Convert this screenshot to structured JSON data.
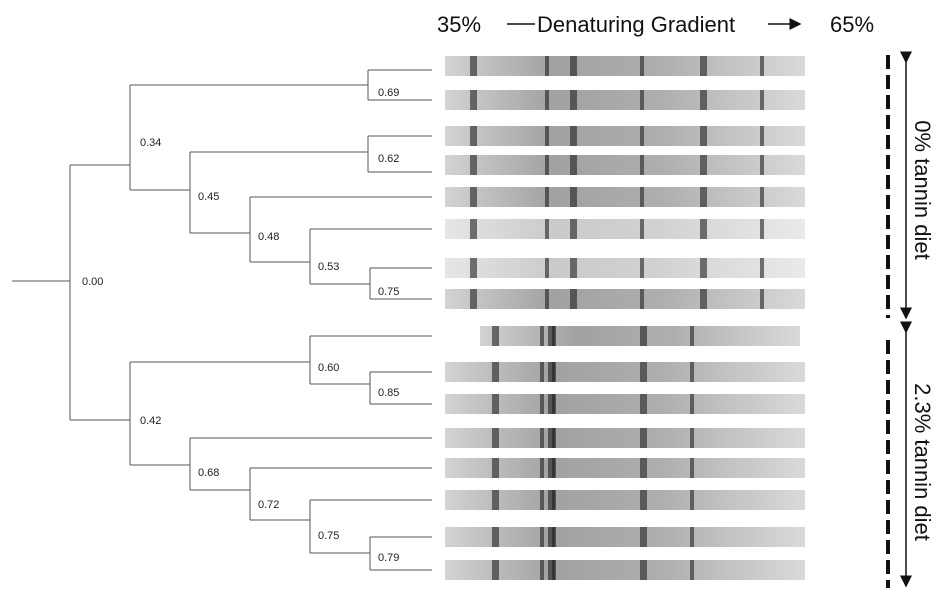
{
  "header": {
    "left": "35%",
    "title": "Denaturing Gradient",
    "right": "65%"
  },
  "nodes": [
    {
      "label": "0.00"
    },
    {
      "label": "0.34"
    },
    {
      "label": "0.69"
    },
    {
      "label": "0.45"
    },
    {
      "label": "0.62"
    },
    {
      "label": "0.48"
    },
    {
      "label": "0.53"
    },
    {
      "label": "0.75"
    },
    {
      "label": "0.42"
    },
    {
      "label": "0.60"
    },
    {
      "label": "0.85"
    },
    {
      "label": "0.68"
    },
    {
      "label": "0.72"
    },
    {
      "label": "0.75"
    },
    {
      "label": "0.79"
    }
  ],
  "groups": [
    {
      "label": "0% tannin diet"
    },
    {
      "label": "2.3% tannin diet"
    }
  ]
}
